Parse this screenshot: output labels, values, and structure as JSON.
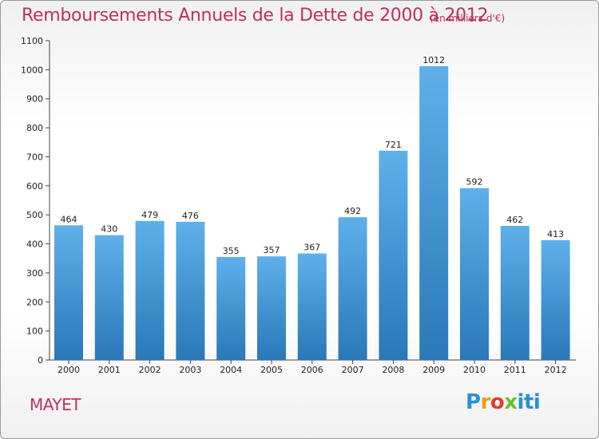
{
  "header": {
    "title": "Remboursements Annuels de la Dette de 2000 à 2012",
    "unit": "(en milliers d'€)"
  },
  "footer": {
    "commune": "MAYET",
    "logo": "Proxiti"
  },
  "colors": {
    "title": "#c0305a",
    "bar_top": "#5fb0ea",
    "bar_bottom": "#2a78b8"
  },
  "chart_data": {
    "type": "bar",
    "title": "Remboursements Annuels de la Dette de 2000 à 2012",
    "subtitle": "(en milliers d'€)",
    "xlabel": "",
    "ylabel": "",
    "categories": [
      "2000",
      "2001",
      "2002",
      "2003",
      "2004",
      "2005",
      "2006",
      "2007",
      "2008",
      "2009",
      "2010",
      "2011",
      "2012"
    ],
    "values": [
      464,
      430,
      479,
      476,
      355,
      357,
      367,
      492,
      721,
      1012,
      592,
      462,
      413
    ],
    "ylim": [
      0,
      1100
    ],
    "yticks": [
      0,
      100,
      200,
      300,
      400,
      500,
      600,
      700,
      800,
      900,
      1000,
      1100
    ],
    "grid": false,
    "legend": "none",
    "data_labels": true
  }
}
